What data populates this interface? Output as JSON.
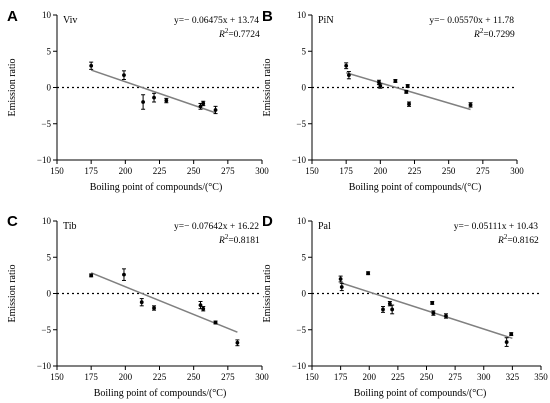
{
  "chart_data": [
    {
      "type": "scatter",
      "panel_letter": "A",
      "series_label": "Viv",
      "equation": "y=− 0.06475x + 13.74",
      "r2_label": "R",
      "r2_value": "=0.7724",
      "xlabel": "Boiling point of compounds/(°C)",
      "ylabel": "Emission ratio",
      "xlim": [
        150,
        300
      ],
      "ylim": [
        -10,
        10
      ],
      "xticks": [
        150,
        175,
        200,
        225,
        250,
        275,
        300
      ],
      "yticks": [
        -10,
        -5,
        0,
        5,
        10
      ],
      "reference_line_y": 0,
      "points": [
        {
          "x": 175,
          "y": 3.0,
          "err": 0.5
        },
        {
          "x": 199,
          "y": 1.7,
          "err": 0.6
        },
        {
          "x": 213,
          "y": -2.0,
          "err": 1.0
        },
        {
          "x": 221,
          "y": -1.4,
          "err": 0.6
        },
        {
          "x": 230,
          "y": -1.8,
          "err": 0.3
        },
        {
          "x": 255,
          "y": -2.6,
          "err": 0.4
        },
        {
          "x": 257,
          "y": -2.2,
          "err": 0.3
        },
        {
          "x": 266,
          "y": -3.1,
          "err": 0.5
        }
      ],
      "fit": {
        "slope": -0.06475,
        "intercept": 13.74,
        "x_range": [
          175,
          266
        ]
      }
    },
    {
      "type": "scatter",
      "panel_letter": "B",
      "series_label": "PiN",
      "equation": "y=− 0.05570x + 11.78",
      "r2_label": "R",
      "r2_value": "=0.7299",
      "xlabel": "",
      "ylabel": "",
      "xlim": [
        150,
        300
      ],
      "ylim": [
        -10,
        10
      ],
      "xticks": [
        150,
        175,
        200,
        225,
        250,
        275,
        300
      ],
      "yticks": [
        -10,
        -5,
        0,
        5,
        10
      ],
      "reference_line_y": 0,
      "points": [
        {
          "x": 175,
          "y": 3.0,
          "err": 0.4
        },
        {
          "x": 177,
          "y": 1.7,
          "err": 0.5
        },
        {
          "x": 199,
          "y": 0.7,
          "err": 0.3
        },
        {
          "x": 200,
          "y": 0.2,
          "err": 0.3
        },
        {
          "x": 211,
          "y": 0.9,
          "err": 0.2
        },
        {
          "x": 219,
          "y": -0.6,
          "err": 0.2
        },
        {
          "x": 220,
          "y": 0.2,
          "err": 0.2
        },
        {
          "x": 221,
          "y": -2.3,
          "err": 0.3
        },
        {
          "x": 266,
          "y": -2.4,
          "err": 0.3
        }
      ],
      "fit": {
        "slope": -0.0557,
        "intercept": 11.78,
        "x_range": [
          175,
          266
        ]
      }
    },
    {
      "type": "scatter",
      "panel_letter": "C",
      "series_label": "Tib",
      "equation": "y=− 0.07642x + 16.22",
      "r2_label": "R",
      "r2_value": "=0.8181",
      "xlabel": "Boiling point of compounds/(°C)",
      "ylabel": "Emission ratio",
      "xlim": [
        150,
        300
      ],
      "ylim": [
        -10,
        10
      ],
      "xticks": [
        150,
        175,
        200,
        225,
        250,
        275,
        300
      ],
      "yticks": [
        -10,
        -5,
        0,
        5,
        10
      ],
      "reference_line_y": 0,
      "points": [
        {
          "x": 175,
          "y": 2.5,
          "err": 0.2
        },
        {
          "x": 199,
          "y": 2.6,
          "err": 0.8
        },
        {
          "x": 212,
          "y": -1.2,
          "err": 0.5
        },
        {
          "x": 221,
          "y": -2.0,
          "err": 0.3
        },
        {
          "x": 255,
          "y": -1.6,
          "err": 0.5
        },
        {
          "x": 257,
          "y": -2.1,
          "err": 0.3
        },
        {
          "x": 266,
          "y": -4.0,
          "err": 0.2
        },
        {
          "x": 282,
          "y": -6.8,
          "err": 0.4
        }
      ],
      "fit": {
        "slope": -0.07642,
        "intercept": 16.22,
        "x_range": [
          175,
          282
        ]
      }
    },
    {
      "type": "scatter",
      "panel_letter": "D",
      "series_label": "Pal",
      "equation": "y=− 0.05111x + 10.43",
      "r2_label": "R",
      "r2_value": "=0.8162",
      "xlabel": "Boiling point of compounds/(°C)",
      "ylabel": "",
      "xlim": [
        150,
        350
      ],
      "ylim": [
        -10,
        10
      ],
      "xticks": [
        150,
        175,
        200,
        225,
        250,
        275,
        300,
        325,
        350
      ],
      "yticks": [
        -10,
        -5,
        0,
        5,
        10
      ],
      "reference_line_y": 0,
      "points": [
        {
          "x": 175,
          "y": 2.0,
          "err": 0.4
        },
        {
          "x": 176,
          "y": 0.9,
          "err": 0.5
        },
        {
          "x": 199,
          "y": 2.8,
          "err": 0.2
        },
        {
          "x": 212,
          "y": -2.2,
          "err": 0.4
        },
        {
          "x": 218,
          "y": -1.4,
          "err": 0.3
        },
        {
          "x": 220,
          "y": -2.2,
          "err": 0.6
        },
        {
          "x": 255,
          "y": -1.3,
          "err": 0.2
        },
        {
          "x": 256,
          "y": -2.7,
          "err": 0.3
        },
        {
          "x": 267,
          "y": -3.1,
          "err": 0.3
        },
        {
          "x": 320,
          "y": -6.7,
          "err": 0.6
        },
        {
          "x": 324,
          "y": -5.6,
          "err": 0.2
        }
      ],
      "fit": {
        "slope": -0.05111,
        "intercept": 10.43,
        "x_range": [
          175,
          325
        ]
      }
    }
  ],
  "colors": {
    "axis": "#000000",
    "points": "#000000",
    "fit_line": "#808080",
    "reference_line": "#000000"
  }
}
